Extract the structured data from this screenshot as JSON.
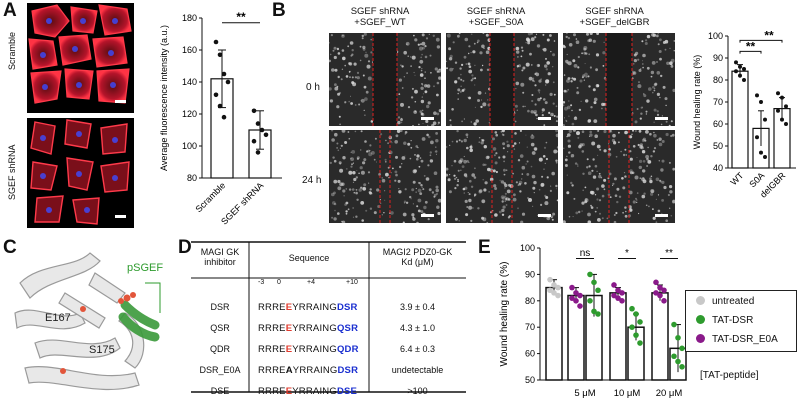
{
  "panelA": {
    "letter": "A",
    "image_labels": [
      "Scramble",
      "SGEF shRNA"
    ],
    "chart_data": {
      "type": "bar",
      "ylabel": "Average fluorescence intensity (a.u.)",
      "categories": [
        "Scramble",
        "SGEF shRNA"
      ],
      "values": [
        142,
        110
      ],
      "errors": [
        18,
        12
      ],
      "points": [
        [
          165,
          157,
          145,
          140,
          132,
          125,
          118
        ],
        [
          122,
          114,
          110,
          107,
          103,
          96
        ]
      ],
      "ylim": [
        80,
        180
      ],
      "yticks": [
        "80",
        "100",
        "120",
        "140",
        "160",
        "180"
      ],
      "significance": "**"
    }
  },
  "panelB": {
    "letter": "B",
    "column_headers": [
      "SGEF shRNA\n+SGEF_WT",
      "SGEF shRNA\n+SGEF_S0A",
      "SGEF shRNA\n+SGEF_delGBR"
    ],
    "row_labels": [
      "0 h",
      "24 h"
    ],
    "chart_data": {
      "type": "bar",
      "ylabel": "Wound healing rate (%)",
      "categories": [
        "WT",
        "S0A",
        "delGBR"
      ],
      "values": [
        84,
        58,
        67
      ],
      "errors": [
        3,
        8,
        5
      ],
      "points": [
        [
          88,
          86,
          85,
          84,
          82,
          80
        ],
        [
          73,
          70,
          62,
          54,
          47,
          45
        ],
        [
          74,
          72,
          68,
          66,
          62,
          60
        ]
      ],
      "ylim": [
        40,
        100
      ],
      "yticks": [
        "40",
        "50",
        "60",
        "70",
        "80",
        "90",
        "100"
      ],
      "significance": [
        "**",
        "**"
      ]
    }
  },
  "panelC": {
    "letter": "C",
    "labels": {
      "psgef": "pSGEF",
      "e167": "E167",
      "s175": "S175"
    }
  },
  "panelD": {
    "letter": "D",
    "headers": {
      "col1": "MAGI GK\ninhibitor",
      "col2": "Sequence",
      "col3": "MAGI2 PDZ0-GK\nKd (μM)"
    },
    "positions": {
      "p1": "-3",
      "p2": "0",
      "p3": "+4",
      "p4": "+10"
    },
    "rows": [
      {
        "name": "DSR",
        "pre": "RRRE",
        "mid": "E",
        "mid_color": "#e23b2e",
        "body": "YRRAING",
        "tail": "DSR",
        "kd": "3.9 ± 0.4"
      },
      {
        "name": "QSR",
        "pre": "RRRE",
        "mid": "E",
        "mid_color": "#e23b2e",
        "body": "YRRAING",
        "tail": "QSR",
        "kd": "4.3 ± 1.0"
      },
      {
        "name": "QDR",
        "pre": "RRRE",
        "mid": "E",
        "mid_color": "#e23b2e",
        "body": "YRRAING",
        "tail": "QDR",
        "kd": "6.4 ± 0.3"
      },
      {
        "name": "DSR_E0A",
        "pre": "RRRE",
        "mid": "A",
        "mid_color": "#111111",
        "body": "YRRAING",
        "tail": "DSR",
        "kd": "undetectable"
      },
      {
        "name": "DSE",
        "pre": "RRRE",
        "mid": "E",
        "mid_color": "#e23b2e",
        "body": "YRRAING",
        "tail": "DSE",
        "kd": ">100"
      }
    ]
  },
  "panelE": {
    "letter": "E",
    "chart_data": {
      "type": "bar",
      "ylabel": "Wound healing rate (%)",
      "ylim": [
        50,
        100
      ],
      "yticks": [
        "50",
        "60",
        "70",
        "80",
        "90",
        "100"
      ],
      "groups": [
        "",
        "5 μM",
        "10 μM",
        "20 μM"
      ],
      "group_suffix": "[TAT-peptide]",
      "bars": [
        {
          "series": "untreated",
          "group": 0,
          "value": 85,
          "error": 3,
          "points": [
            88,
            86,
            85,
            84,
            83,
            82
          ]
        },
        {
          "series": "TAT-DSR_E0A",
          "group": 1,
          "value": 82,
          "error": 3,
          "points": [
            85,
            83,
            82,
            81,
            80,
            78
          ]
        },
        {
          "series": "TAT-DSR",
          "group": 1,
          "value": 82,
          "error": 8,
          "points": [
            90,
            87,
            84,
            80,
            76,
            75
          ]
        },
        {
          "series": "TAT-DSR_E0A",
          "group": 2,
          "value": 83,
          "error": 2,
          "points": [
            86,
            84,
            83,
            82,
            81,
            80
          ]
        },
        {
          "series": "TAT-DSR",
          "group": 2,
          "value": 70,
          "error": 5,
          "points": [
            77,
            75,
            72,
            70,
            67,
            64
          ]
        },
        {
          "series": "TAT-DSR_E0A",
          "group": 3,
          "value": 83,
          "error": 3,
          "points": [
            87,
            85,
            84,
            83,
            82,
            80
          ]
        },
        {
          "series": "TAT-DSR",
          "group": 3,
          "value": 62,
          "error": 9,
          "points": [
            71,
            66,
            62,
            59,
            57,
            55
          ]
        }
      ],
      "significance": [
        "ns",
        "*",
        "**"
      ],
      "legend": [
        {
          "name": "untreated",
          "color": "#c8c8c8"
        },
        {
          "name": "TAT-DSR",
          "color": "#2e9b2e"
        },
        {
          "name": "TAT-DSR_E0A",
          "color": "#8a1a8a"
        }
      ]
    }
  }
}
